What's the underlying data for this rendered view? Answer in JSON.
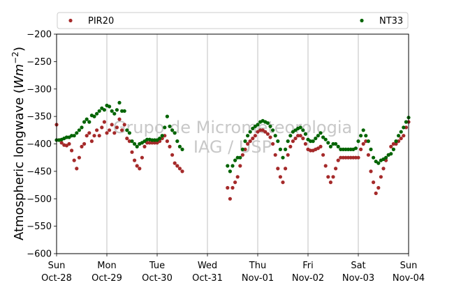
{
  "chart_data": {
    "type": "scatter",
    "ylabel_main": "Atmospheric longwave (",
    "ylabel_unit_w": "W",
    "ylabel_unit_m": "m",
    "ylabel_unit_exp": "−2",
    "ylabel_close": ")",
    "ylim": [
      -600,
      -200
    ],
    "yticks": [
      {
        "value": -200,
        "label": "−200"
      },
      {
        "value": -250,
        "label": "−250"
      },
      {
        "value": -300,
        "label": "−300"
      },
      {
        "value": -350,
        "label": "−350"
      },
      {
        "value": -400,
        "label": "−400"
      },
      {
        "value": -450,
        "label": "−450"
      },
      {
        "value": -500,
        "label": "−500"
      },
      {
        "value": -550,
        "label": "−550"
      },
      {
        "value": -600,
        "label": "−600"
      }
    ],
    "xlim_days": [
      0,
      7
    ],
    "xticks": [
      {
        "day": 0,
        "line1": "Sun",
        "line2": "Oct-28"
      },
      {
        "day": 1,
        "line1": "Mon",
        "line2": "Oct-29"
      },
      {
        "day": 2,
        "line1": "Tue",
        "line2": "Oct-30"
      },
      {
        "day": 3,
        "line1": "Wed",
        "line2": "Oct-31"
      },
      {
        "day": 4,
        "line1": "Thu",
        "line2": "Nov-01"
      },
      {
        "day": 5,
        "line1": "Fri",
        "line2": "Nov-02"
      },
      {
        "day": 6,
        "line1": "Sat",
        "line2": "Nov-03"
      },
      {
        "day": 7,
        "line1": "Sun",
        "line2": "Nov-04"
      }
    ],
    "grid": "vertical",
    "legend_position": "top",
    "watermark": [
      "Grupo de Micrometeorologia",
      "IAG / USP"
    ],
    "series": [
      {
        "name": "PIR20",
        "color": "#a52a2a",
        "points": [
          [
            0.0,
            -365
          ],
          [
            0.05,
            -393
          ],
          [
            0.1,
            -398
          ],
          [
            0.15,
            -402
          ],
          [
            0.2,
            -403
          ],
          [
            0.25,
            -400
          ],
          [
            0.3,
            -412
          ],
          [
            0.35,
            -430
          ],
          [
            0.4,
            -445
          ],
          [
            0.45,
            -425
          ],
          [
            0.5,
            -405
          ],
          [
            0.55,
            -400
          ],
          [
            0.6,
            -385
          ],
          [
            0.65,
            -380
          ],
          [
            0.7,
            -395
          ],
          [
            0.75,
            -385
          ],
          [
            0.8,
            -375
          ],
          [
            0.85,
            -385
          ],
          [
            0.9,
            -370
          ],
          [
            0.95,
            -360
          ],
          [
            1.0,
            -380
          ],
          [
            1.05,
            -375
          ],
          [
            1.1,
            -365
          ],
          [
            1.15,
            -380
          ],
          [
            1.2,
            -370
          ],
          [
            1.25,
            -355
          ],
          [
            1.3,
            -375
          ],
          [
            1.35,
            -365
          ],
          [
            1.4,
            -390
          ],
          [
            1.45,
            -395
          ],
          [
            1.5,
            -415
          ],
          [
            1.55,
            -430
          ],
          [
            1.6,
            -440
          ],
          [
            1.65,
            -445
          ],
          [
            1.7,
            -425
          ],
          [
            1.75,
            -405
          ],
          [
            1.8,
            -398
          ],
          [
            1.85,
            -398
          ],
          [
            1.9,
            -398
          ],
          [
            1.95,
            -398
          ],
          [
            2.0,
            -398
          ],
          [
            2.05,
            -395
          ],
          [
            2.1,
            -390
          ],
          [
            2.15,
            -385
          ],
          [
            2.2,
            -395
          ],
          [
            2.25,
            -405
          ],
          [
            2.3,
            -420
          ],
          [
            2.35,
            -435
          ],
          [
            2.4,
            -440
          ],
          [
            2.45,
            -445
          ],
          [
            2.5,
            -450
          ],
          [
            3.4,
            -480
          ],
          [
            3.45,
            -500
          ],
          [
            3.5,
            -480
          ],
          [
            3.55,
            -470
          ],
          [
            3.6,
            -460
          ],
          [
            3.65,
            -440
          ],
          [
            3.7,
            -420
          ],
          [
            3.75,
            -410
          ],
          [
            3.8,
            -400
          ],
          [
            3.85,
            -395
          ],
          [
            3.9,
            -390
          ],
          [
            3.95,
            -385
          ],
          [
            4.0,
            -378
          ],
          [
            4.05,
            -375
          ],
          [
            4.1,
            -375
          ],
          [
            4.15,
            -378
          ],
          [
            4.2,
            -382
          ],
          [
            4.25,
            -388
          ],
          [
            4.3,
            -400
          ],
          [
            4.35,
            -420
          ],
          [
            4.4,
            -445
          ],
          [
            4.45,
            -460
          ],
          [
            4.5,
            -470
          ],
          [
            4.55,
            -445
          ],
          [
            4.6,
            -420
          ],
          [
            4.65,
            -405
          ],
          [
            4.7,
            -395
          ],
          [
            4.75,
            -390
          ],
          [
            4.8,
            -385
          ],
          [
            4.85,
            -385
          ],
          [
            4.9,
            -390
          ],
          [
            4.95,
            -400
          ],
          [
            5.0,
            -410
          ],
          [
            5.05,
            -412
          ],
          [
            5.1,
            -412
          ],
          [
            5.15,
            -410
          ],
          [
            5.2,
            -408
          ],
          [
            5.25,
            -405
          ],
          [
            5.3,
            -420
          ],
          [
            5.35,
            -440
          ],
          [
            5.4,
            -460
          ],
          [
            5.45,
            -470
          ],
          [
            5.5,
            -460
          ],
          [
            5.55,
            -445
          ],
          [
            5.6,
            -430
          ],
          [
            5.65,
            -425
          ],
          [
            5.7,
            -425
          ],
          [
            5.75,
            -425
          ],
          [
            5.8,
            -425
          ],
          [
            5.85,
            -425
          ],
          [
            5.9,
            -425
          ],
          [
            5.95,
            -425
          ],
          [
            6.0,
            -425
          ],
          [
            6.05,
            -410
          ],
          [
            6.1,
            -400
          ],
          [
            6.15,
            -395
          ],
          [
            6.2,
            -420
          ],
          [
            6.25,
            -450
          ],
          [
            6.3,
            -470
          ],
          [
            6.35,
            -490
          ],
          [
            6.4,
            -480
          ],
          [
            6.45,
            -460
          ],
          [
            6.5,
            -445
          ],
          [
            6.55,
            -430
          ],
          [
            6.6,
            -420
          ],
          [
            6.65,
            -405
          ],
          [
            6.7,
            -400
          ],
          [
            6.75,
            -400
          ],
          [
            6.8,
            -395
          ],
          [
            6.85,
            -390
          ],
          [
            6.9,
            -385
          ],
          [
            6.95,
            -370
          ],
          [
            7.0,
            -360
          ]
        ]
      },
      {
        "name": "NT33",
        "color": "#006400",
        "points": [
          [
            0.0,
            -393
          ],
          [
            0.05,
            -393
          ],
          [
            0.1,
            -392
          ],
          [
            0.15,
            -390
          ],
          [
            0.2,
            -388
          ],
          [
            0.25,
            -388
          ],
          [
            0.3,
            -385
          ],
          [
            0.35,
            -385
          ],
          [
            0.4,
            -380
          ],
          [
            0.45,
            -375
          ],
          [
            0.5,
            -370
          ],
          [
            0.55,
            -360
          ],
          [
            0.6,
            -355
          ],
          [
            0.65,
            -360
          ],
          [
            0.7,
            -348
          ],
          [
            0.75,
            -350
          ],
          [
            0.8,
            -345
          ],
          [
            0.85,
            -340
          ],
          [
            0.9,
            -335
          ],
          [
            0.95,
            -338
          ],
          [
            1.0,
            -330
          ],
          [
            1.05,
            -332
          ],
          [
            1.1,
            -340
          ],
          [
            1.15,
            -345
          ],
          [
            1.2,
            -338
          ],
          [
            1.25,
            -325
          ],
          [
            1.3,
            -340
          ],
          [
            1.35,
            -340
          ],
          [
            1.4,
            -375
          ],
          [
            1.45,
            -380
          ],
          [
            1.5,
            -395
          ],
          [
            1.55,
            -400
          ],
          [
            1.6,
            -405
          ],
          [
            1.65,
            -400
          ],
          [
            1.7,
            -398
          ],
          [
            1.75,
            -395
          ],
          [
            1.8,
            -392
          ],
          [
            1.85,
            -392
          ],
          [
            1.9,
            -393
          ],
          [
            1.95,
            -393
          ],
          [
            2.0,
            -393
          ],
          [
            2.05,
            -390
          ],
          [
            2.1,
            -385
          ],
          [
            2.15,
            -370
          ],
          [
            2.2,
            -350
          ],
          [
            2.25,
            -368
          ],
          [
            2.3,
            -375
          ],
          [
            2.35,
            -380
          ],
          [
            2.4,
            -395
          ],
          [
            2.45,
            -405
          ],
          [
            2.5,
            -410
          ],
          [
            3.4,
            -440
          ],
          [
            3.45,
            -450
          ],
          [
            3.5,
            -440
          ],
          [
            3.55,
            -430
          ],
          [
            3.6,
            -425
          ],
          [
            3.65,
            -425
          ],
          [
            3.7,
            -410
          ],
          [
            3.75,
            -395
          ],
          [
            3.8,
            -385
          ],
          [
            3.85,
            -378
          ],
          [
            3.9,
            -372
          ],
          [
            3.95,
            -368
          ],
          [
            4.0,
            -365
          ],
          [
            4.05,
            -360
          ],
          [
            4.1,
            -358
          ],
          [
            4.15,
            -360
          ],
          [
            4.2,
            -362
          ],
          [
            4.25,
            -368
          ],
          [
            4.3,
            -375
          ],
          [
            4.35,
            -385
          ],
          [
            4.4,
            -395
          ],
          [
            4.45,
            -410
          ],
          [
            4.5,
            -425
          ],
          [
            4.55,
            -410
          ],
          [
            4.6,
            -395
          ],
          [
            4.65,
            -385
          ],
          [
            4.7,
            -378
          ],
          [
            4.75,
            -375
          ],
          [
            4.8,
            -372
          ],
          [
            4.85,
            -370
          ],
          [
            4.9,
            -375
          ],
          [
            4.95,
            -382
          ],
          [
            5.0,
            -392
          ],
          [
            5.05,
            -395
          ],
          [
            5.1,
            -395
          ],
          [
            5.15,
            -390
          ],
          [
            5.2,
            -385
          ],
          [
            5.25,
            -380
          ],
          [
            5.3,
            -388
          ],
          [
            5.35,
            -392
          ],
          [
            5.4,
            -398
          ],
          [
            5.45,
            -405
          ],
          [
            5.5,
            -400
          ],
          [
            5.55,
            -400
          ],
          [
            5.6,
            -405
          ],
          [
            5.65,
            -410
          ],
          [
            5.7,
            -410
          ],
          [
            5.75,
            -410
          ],
          [
            5.8,
            -410
          ],
          [
            5.85,
            -410
          ],
          [
            5.9,
            -410
          ],
          [
            5.95,
            -408
          ],
          [
            6.0,
            -395
          ],
          [
            6.05,
            -385
          ],
          [
            6.1,
            -375
          ],
          [
            6.15,
            -385
          ],
          [
            6.2,
            -395
          ],
          [
            6.25,
            -410
          ],
          [
            6.3,
            -425
          ],
          [
            6.35,
            -432
          ],
          [
            6.4,
            -435
          ],
          [
            6.45,
            -430
          ],
          [
            6.5,
            -428
          ],
          [
            6.55,
            -425
          ],
          [
            6.6,
            -420
          ],
          [
            6.65,
            -418
          ],
          [
            6.7,
            -410
          ],
          [
            6.75,
            -395
          ],
          [
            6.8,
            -385
          ],
          [
            6.85,
            -378
          ],
          [
            6.9,
            -370
          ],
          [
            6.95,
            -360
          ],
          [
            7.0,
            -352
          ]
        ]
      }
    ]
  }
}
